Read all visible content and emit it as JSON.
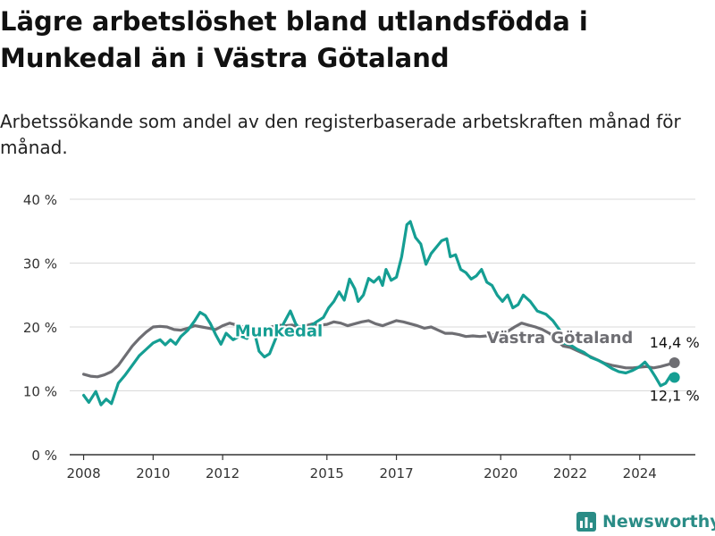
{
  "title": "Lägre arbetslöshet bland utlandsfödda i Munkedal än i Västra Götaland",
  "subtitle": "Arbetssökande som andel av den registerbaserade arbetskraften månad för månad.",
  "brand": "Newsworthy",
  "colors": {
    "munkedal": "#159e93",
    "vastra": "#6e6e73",
    "grid": "#d9d9d9",
    "axis": "#333333"
  },
  "chart_data": {
    "type": "line",
    "title": "Lägre arbetslöshet bland utlandsfödda i Munkedal än i Västra Götaland",
    "xlabel": "",
    "ylabel": "",
    "xlim": [
      2007.6,
      2025.6
    ],
    "ylim": [
      0,
      40
    ],
    "x_ticks": [
      2008,
      2010,
      2012,
      2015,
      2017,
      2020,
      2022,
      2024
    ],
    "y_ticks": [
      {
        "value": 0,
        "label": "0 %"
      },
      {
        "value": 10,
        "label": "10 %"
      },
      {
        "value": 20,
        "label": "20 %"
      },
      {
        "value": 30,
        "label": "30 %"
      },
      {
        "value": 40,
        "label": "40 %"
      }
    ],
    "grid": true,
    "series": [
      {
        "name": "Munkedal",
        "color": "#159e93",
        "end_label": "12,1 %",
        "points": [
          [
            2008.0,
            9.3
          ],
          [
            2008.15,
            8.2
          ],
          [
            2008.35,
            9.9
          ],
          [
            2008.5,
            7.8
          ],
          [
            2008.65,
            8.7
          ],
          [
            2008.8,
            8.0
          ],
          [
            2009.0,
            11.2
          ],
          [
            2009.2,
            12.5
          ],
          [
            2009.4,
            14.0
          ],
          [
            2009.6,
            15.5
          ],
          [
            2009.8,
            16.5
          ],
          [
            2010.0,
            17.5
          ],
          [
            2010.2,
            18.0
          ],
          [
            2010.35,
            17.2
          ],
          [
            2010.5,
            18.0
          ],
          [
            2010.65,
            17.3
          ],
          [
            2010.8,
            18.5
          ],
          [
            2011.0,
            19.5
          ],
          [
            2011.2,
            21.0
          ],
          [
            2011.35,
            22.3
          ],
          [
            2011.5,
            21.8
          ],
          [
            2011.65,
            20.5
          ],
          [
            2011.8,
            18.8
          ],
          [
            2011.95,
            17.3
          ],
          [
            2012.1,
            19.0
          ],
          [
            2012.3,
            18.0
          ],
          [
            2012.5,
            18.6
          ],
          [
            2012.7,
            18.2
          ],
          [
            2012.9,
            19.5
          ],
          [
            2013.05,
            16.2
          ],
          [
            2013.2,
            15.3
          ],
          [
            2013.35,
            15.8
          ],
          [
            2013.55,
            18.5
          ],
          [
            2013.75,
            20.5
          ],
          [
            2013.95,
            22.5
          ],
          [
            2014.1,
            20.5
          ],
          [
            2014.3,
            19.2
          ],
          [
            2014.5,
            20.0
          ],
          [
            2014.7,
            20.8
          ],
          [
            2014.9,
            21.5
          ],
          [
            2015.05,
            23.0
          ],
          [
            2015.2,
            24.0
          ],
          [
            2015.35,
            25.5
          ],
          [
            2015.5,
            24.2
          ],
          [
            2015.65,
            27.5
          ],
          [
            2015.8,
            26.0
          ],
          [
            2015.9,
            24.0
          ],
          [
            2016.05,
            25.0
          ],
          [
            2016.2,
            27.6
          ],
          [
            2016.35,
            27.0
          ],
          [
            2016.5,
            27.8
          ],
          [
            2016.6,
            26.5
          ],
          [
            2016.7,
            29.0
          ],
          [
            2016.85,
            27.3
          ],
          [
            2017.0,
            27.8
          ],
          [
            2017.15,
            31.0
          ],
          [
            2017.3,
            36.0
          ],
          [
            2017.4,
            36.5
          ],
          [
            2017.55,
            34.0
          ],
          [
            2017.7,
            33.0
          ],
          [
            2017.85,
            29.8
          ],
          [
            2018.0,
            31.5
          ],
          [
            2018.15,
            32.5
          ],
          [
            2018.3,
            33.5
          ],
          [
            2018.45,
            33.8
          ],
          [
            2018.55,
            31.0
          ],
          [
            2018.7,
            31.3
          ],
          [
            2018.85,
            29.0
          ],
          [
            2019.0,
            28.5
          ],
          [
            2019.15,
            27.5
          ],
          [
            2019.3,
            28.0
          ],
          [
            2019.45,
            29.0
          ],
          [
            2019.6,
            27.0
          ],
          [
            2019.75,
            26.5
          ],
          [
            2019.9,
            25.0
          ],
          [
            2020.05,
            24.0
          ],
          [
            2020.2,
            25.0
          ],
          [
            2020.35,
            23.0
          ],
          [
            2020.5,
            23.5
          ],
          [
            2020.65,
            25.0
          ],
          [
            2020.85,
            24.0
          ],
          [
            2021.05,
            22.5
          ],
          [
            2021.3,
            22.0
          ],
          [
            2021.5,
            21.0
          ],
          [
            2021.7,
            19.5
          ],
          [
            2021.8,
            17.5
          ],
          [
            2022.0,
            17.2
          ],
          [
            2022.2,
            16.5
          ],
          [
            2022.4,
            16.0
          ],
          [
            2022.6,
            15.2
          ],
          [
            2022.8,
            14.8
          ],
          [
            2023.0,
            14.2
          ],
          [
            2023.2,
            13.5
          ],
          [
            2023.4,
            13.0
          ],
          [
            2023.6,
            12.8
          ],
          [
            2023.8,
            13.2
          ],
          [
            2024.0,
            13.8
          ],
          [
            2024.15,
            14.5
          ],
          [
            2024.3,
            13.5
          ],
          [
            2024.45,
            12.2
          ],
          [
            2024.6,
            10.8
          ],
          [
            2024.75,
            11.2
          ],
          [
            2024.9,
            12.5
          ],
          [
            2025.0,
            12.1
          ]
        ]
      },
      {
        "name": "Västra Götaland",
        "color": "#6e6e73",
        "end_label": "14,4 %",
        "points": [
          [
            2008.0,
            12.6
          ],
          [
            2008.2,
            12.3
          ],
          [
            2008.4,
            12.2
          ],
          [
            2008.6,
            12.5
          ],
          [
            2008.8,
            13.0
          ],
          [
            2009.0,
            14.0
          ],
          [
            2009.2,
            15.5
          ],
          [
            2009.4,
            17.0
          ],
          [
            2009.6,
            18.2
          ],
          [
            2009.8,
            19.2
          ],
          [
            2010.0,
            20.0
          ],
          [
            2010.2,
            20.1
          ],
          [
            2010.4,
            20.0
          ],
          [
            2010.6,
            19.6
          ],
          [
            2010.8,
            19.5
          ],
          [
            2011.0,
            19.8
          ],
          [
            2011.2,
            20.2
          ],
          [
            2011.4,
            20.0
          ],
          [
            2011.6,
            19.8
          ],
          [
            2011.8,
            19.6
          ],
          [
            2012.0,
            20.2
          ],
          [
            2012.2,
            20.6
          ],
          [
            2012.4,
            20.3
          ],
          [
            2012.6,
            20.0
          ],
          [
            2012.8,
            19.5
          ],
          [
            2013.0,
            19.6
          ],
          [
            2013.2,
            19.5
          ],
          [
            2013.4,
            20.0
          ],
          [
            2013.6,
            20.3
          ],
          [
            2013.8,
            20.2
          ],
          [
            2014.0,
            20.3
          ],
          [
            2014.2,
            20.0
          ],
          [
            2014.4,
            20.2
          ],
          [
            2014.6,
            20.5
          ],
          [
            2014.8,
            20.3
          ],
          [
            2015.0,
            20.4
          ],
          [
            2015.2,
            20.8
          ],
          [
            2015.4,
            20.6
          ],
          [
            2015.6,
            20.2
          ],
          [
            2015.8,
            20.5
          ],
          [
            2016.0,
            20.8
          ],
          [
            2016.2,
            21.0
          ],
          [
            2016.4,
            20.5
          ],
          [
            2016.6,
            20.2
          ],
          [
            2016.8,
            20.6
          ],
          [
            2017.0,
            21.0
          ],
          [
            2017.2,
            20.8
          ],
          [
            2017.4,
            20.5
          ],
          [
            2017.6,
            20.2
          ],
          [
            2017.8,
            19.8
          ],
          [
            2018.0,
            20.0
          ],
          [
            2018.2,
            19.5
          ],
          [
            2018.4,
            19.0
          ],
          [
            2018.6,
            19.0
          ],
          [
            2018.8,
            18.8
          ],
          [
            2019.0,
            18.5
          ],
          [
            2019.2,
            18.6
          ],
          [
            2019.4,
            18.5
          ],
          [
            2019.6,
            18.6
          ],
          [
            2019.8,
            18.8
          ],
          [
            2020.0,
            19.0
          ],
          [
            2020.2,
            19.3
          ],
          [
            2020.4,
            20.0
          ],
          [
            2020.6,
            20.6
          ],
          [
            2020.8,
            20.3
          ],
          [
            2021.0,
            20.0
          ],
          [
            2021.2,
            19.6
          ],
          [
            2021.4,
            19.0
          ],
          [
            2021.6,
            18.0
          ],
          [
            2021.8,
            17.0
          ],
          [
            2022.0,
            16.8
          ],
          [
            2022.2,
            16.3
          ],
          [
            2022.4,
            15.8
          ],
          [
            2022.6,
            15.3
          ],
          [
            2022.8,
            14.8
          ],
          [
            2023.0,
            14.3
          ],
          [
            2023.2,
            14.0
          ],
          [
            2023.4,
            13.8
          ],
          [
            2023.6,
            13.6
          ],
          [
            2023.8,
            13.6
          ],
          [
            2024.0,
            13.7
          ],
          [
            2024.2,
            13.8
          ],
          [
            2024.4,
            13.6
          ],
          [
            2024.6,
            13.8
          ],
          [
            2024.8,
            14.1
          ],
          [
            2025.0,
            14.4
          ]
        ]
      }
    ],
    "annotations": [
      {
        "series": 0,
        "text": "Munkedal",
        "at": [
          2012.35,
          18.5
        ]
      },
      {
        "series": 1,
        "text": "Västra Götaland",
        "at": [
          2019.6,
          17.5
        ]
      }
    ]
  }
}
